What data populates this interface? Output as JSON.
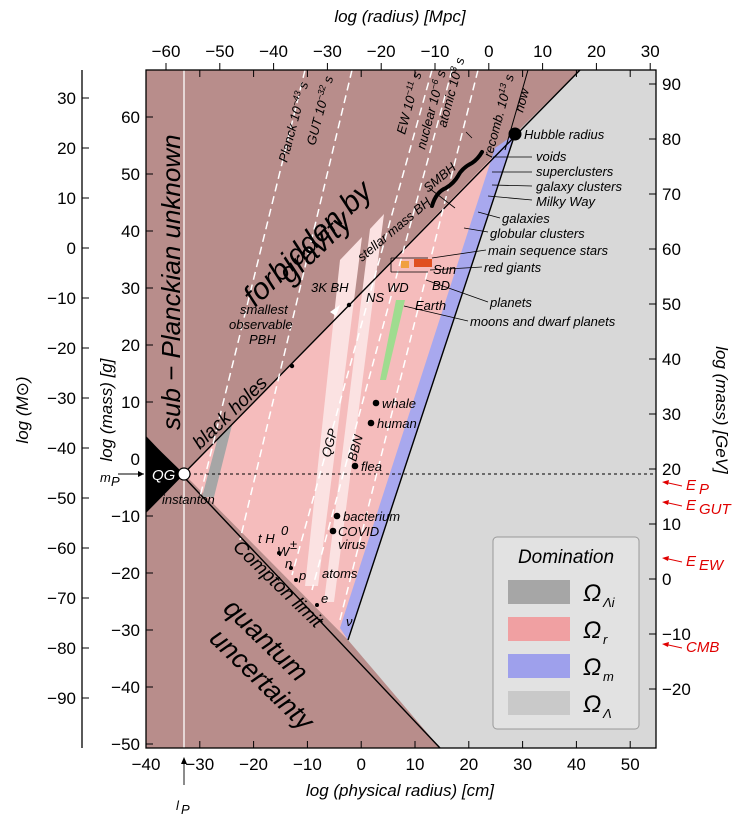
{
  "axes": {
    "top_title": "log (radius) [Mpc]",
    "bottom_title": "log (physical radius) [cm]",
    "left_outer_title": "log (M⊙)",
    "left_inner_title": "log (mass) [g]",
    "right_title": "log (mass) [GeV]",
    "top_ticks": [
      "−60",
      "−50",
      "−40",
      "−30",
      "−20",
      "−10",
      "0",
      "10",
      "20",
      "30"
    ],
    "bottom_ticks": [
      "−40",
      "−30",
      "−20",
      "−10",
      "0",
      "10",
      "20",
      "30",
      "40",
      "50"
    ],
    "left_outer_ticks": [
      "30",
      "20",
      "10",
      "0",
      "−10",
      "−20",
      "−30",
      "−40",
      "−50",
      "−60",
      "−70",
      "−80",
      "−90"
    ],
    "left_inner_ticks": [
      "60",
      "50",
      "40",
      "30",
      "20",
      "10",
      "0",
      "−10",
      "−20",
      "−30",
      "−40",
      "−50"
    ],
    "right_ticks": [
      "90",
      "80",
      "70",
      "60",
      "50",
      "40",
      "30",
      "20",
      "10",
      "0",
      "−10",
      "−20"
    ],
    "left_marker": "m",
    "left_marker_sub": "P",
    "bottom_marker": "l",
    "bottom_marker_sub": "P"
  },
  "energy_markers": [
    {
      "base": "E",
      "sub": "P",
      "color": "#e00000"
    },
    {
      "base": "E",
      "sub": "GUT",
      "color": "#e00000"
    },
    {
      "base": "E",
      "sub": "EW",
      "color": "#e00000"
    },
    {
      "base": "CMB",
      "sub": "",
      "color": "#e00000"
    }
  ],
  "regions": {
    "forbidden_line1": "forbidden by",
    "forbidden_line2": "gravity",
    "planckian": "sub − Planckian unknown",
    "quantum_line1": "quantum",
    "quantum_line2": "uncertainty",
    "black_holes": "black holes",
    "compton": "Compton limit",
    "qg": "QG",
    "qgp": "QGP",
    "bbn": "BBN",
    "instanton": "instanton"
  },
  "epochs": [
    {
      "name": "Planck 10",
      "exp": "−43",
      "unit": "s"
    },
    {
      "name": "GUT 10",
      "exp": "−32",
      "unit": "s"
    },
    {
      "name": "EW 10",
      "exp": "−11",
      "unit": "s"
    },
    {
      "name": "nuclear 10",
      "exp": "−6",
      "unit": "s"
    },
    {
      "name": "atomic 10",
      "exp": "3",
      "unit": "s"
    },
    {
      "name": "recomb. 10",
      "exp": "13",
      "unit": "s"
    },
    {
      "name": "now",
      "exp": "",
      "unit": ""
    }
  ],
  "objects_right": [
    "Hubble radius",
    "voids",
    "superclusters",
    "galaxy clusters",
    "Milky Way",
    "galaxies",
    "globular clusters",
    "main sequence stars",
    "red giants",
    "planets",
    "moons and dwarf planets"
  ],
  "objects_inner": {
    "smbh": "SMBH",
    "stellar_bh": "stellar mass BH",
    "bh3k": "3K BH",
    "ns": "NS",
    "wd": "WD",
    "sun": "Sun",
    "bd": "BD",
    "earth": "Earth",
    "pbh1": "smallest",
    "pbh2": "observable",
    "pbh3": "PBH",
    "whale": "whale",
    "human": "human",
    "flea": "flea",
    "bacterium": "bacterium",
    "covid": "COVID",
    "virus": "virus",
    "atoms": "atoms",
    "th0": "t H",
    "th0_sup": "0",
    "w": "W",
    "w_sup": "±",
    "n": "n",
    "p": "p",
    "e": "e",
    "nu": "ν"
  },
  "legend": {
    "title": "Domination",
    "items": [
      {
        "label": "Ω",
        "sub": "Λi",
        "color": "#a6a6a6"
      },
      {
        "label": "Ω",
        "sub": "r",
        "color": "#f0a0a2"
      },
      {
        "label": "Ω",
        "sub": "m",
        "color": "#9ea0ec"
      },
      {
        "label": "Ω",
        "sub": "Λ",
        "color": "#c9c9c9"
      }
    ]
  },
  "colors": {
    "forbidden": "#b88d8b",
    "radiation": "#f5bcbc",
    "matter": "#a8a8ee",
    "lambda": "#d8d8d8",
    "qg": "#000000",
    "light_stripe": "#fbe2e2",
    "energy": "#e00000"
  }
}
